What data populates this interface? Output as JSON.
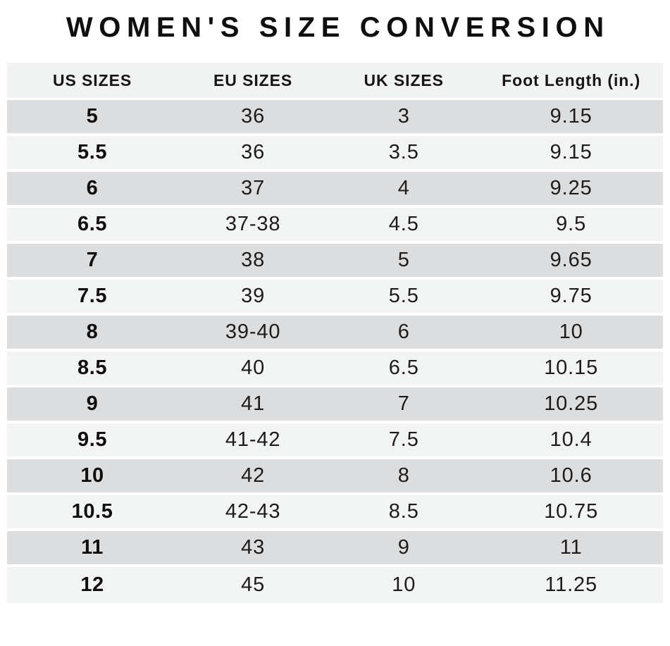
{
  "title": "WOMEN'S SIZE CONVERSION",
  "colors": {
    "row_dark": "#dcddde",
    "row_light": "#f2f3f3",
    "header_bg": "#f1f2f2",
    "separator": "#ffffff",
    "text": "#141414"
  },
  "chart_data": {
    "type": "table",
    "title": "WOMEN'S SIZE CONVERSION",
    "columns": [
      "US SIZES",
      "EU SIZES",
      "UK SIZES",
      "Foot Length (in.)"
    ],
    "rows": [
      [
        "5",
        "36",
        "3",
        "9.15"
      ],
      [
        "5.5",
        "36",
        "3.5",
        "9.15"
      ],
      [
        "6",
        "37",
        "4",
        "9.25"
      ],
      [
        "6.5",
        "37-38",
        "4.5",
        "9.5"
      ],
      [
        "7",
        "38",
        "5",
        "9.65"
      ],
      [
        "7.5",
        "39",
        "5.5",
        "9.75"
      ],
      [
        "8",
        "39-40",
        "6",
        "10"
      ],
      [
        "8.5",
        "40",
        "6.5",
        "10.15"
      ],
      [
        "9",
        "41",
        "7",
        "10.25"
      ],
      [
        "9.5",
        "41-42",
        "7.5",
        "10.4"
      ],
      [
        "10",
        "42",
        "8",
        "10.6"
      ],
      [
        "10.5",
        "42-43",
        "8.5",
        "10.75"
      ],
      [
        "11",
        "43",
        "9",
        "11"
      ],
      [
        "12",
        "45",
        "10",
        "11.25"
      ]
    ],
    "layout": {
      "column_widths_pct": [
        26,
        23,
        23,
        28
      ],
      "stripe_pattern": "first-row-dark-alternating",
      "us_sizes_column_bold": true
    }
  }
}
